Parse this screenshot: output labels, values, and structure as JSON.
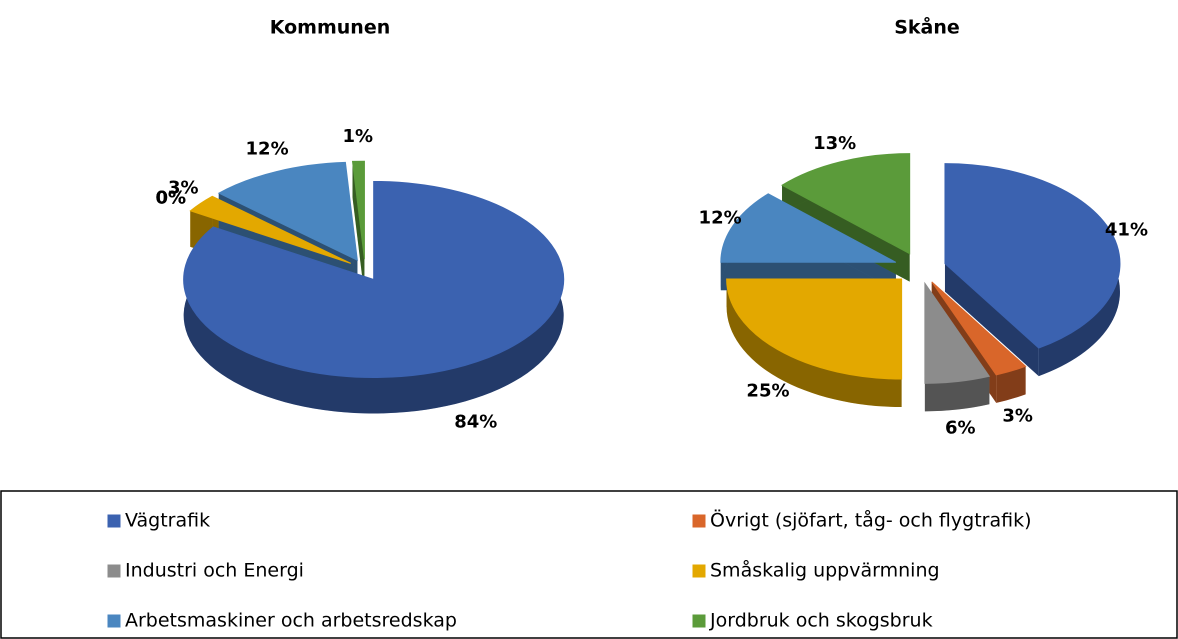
{
  "legend": {
    "categories": [
      "Vägtrafik",
      "Övrigt (sjöfart, tåg- och flygtrafik)",
      "Industri och Energi",
      "Småskalig uppvärmning",
      "Arbetsmaskiner och arbetsredskap",
      "Jordbruk och skogsbruk"
    ],
    "colors": [
      "#3b62b0",
      "#d9662a",
      "#8c8c8c",
      "#e3a800",
      "#4a86c0",
      "#5b9b3a"
    ]
  },
  "chart_data": [
    {
      "type": "pie",
      "title": "Kommunen",
      "values": [
        84,
        0,
        0,
        3,
        12,
        1
      ],
      "value_labels": [
        "84%",
        "0%",
        "0%",
        "3%",
        "12%",
        "1%"
      ]
    },
    {
      "type": "pie",
      "title": "Skåne",
      "values": [
        41,
        3,
        6,
        25,
        12,
        13
      ],
      "value_labels": [
        "41%",
        "3%",
        "6%",
        "25%",
        "12%",
        "13%"
      ]
    }
  ]
}
